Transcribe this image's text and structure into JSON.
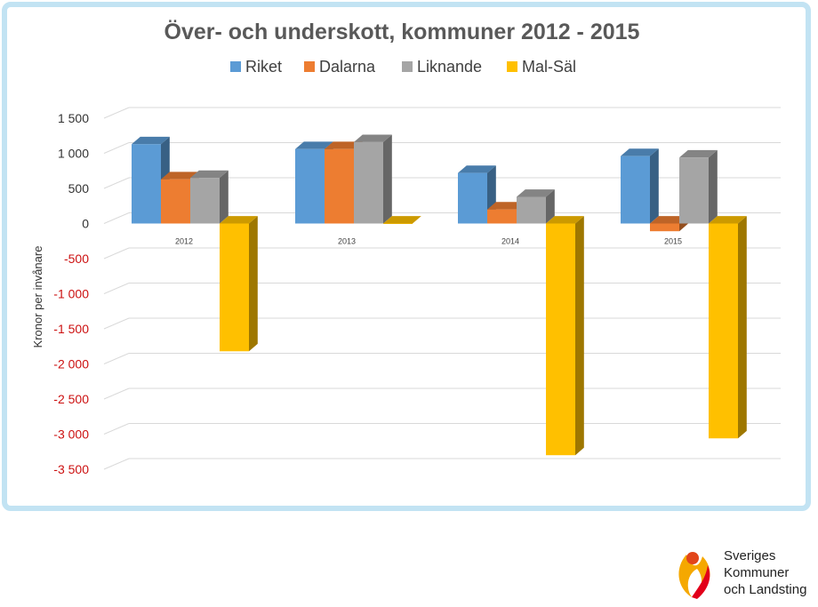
{
  "chart_data": {
    "type": "bar",
    "title": "Över- och underskott, kommuner 2012 - 2015",
    "ylabel": "Kronor per invånare",
    "xlabel": "",
    "categories": [
      "2012",
      "2013",
      "2014",
      "2015"
    ],
    "series": [
      {
        "name": "Riket",
        "values": [
          1130,
          1060,
          720,
          960
        ]
      },
      {
        "name": "Dalarna",
        "values": [
          630,
          1060,
          200,
          -110
        ]
      },
      {
        "name": "Liknande",
        "values": [
          650,
          1160,
          380,
          940
        ]
      },
      {
        "name": "Mal-Säl",
        "values": [
          -1820,
          0,
          -3300,
          -3060
        ]
      }
    ],
    "ylim": [
      -3500,
      1500
    ],
    "yticks": [
      1500,
      1000,
      500,
      0,
      -500,
      -1000,
      -1500,
      -2000,
      -2500,
      -3000,
      -3500
    ],
    "ytick_labels": [
      "1 500",
      "1 000",
      "500",
      "0",
      "-500",
      "-1 000",
      "-1 500",
      "-2 000",
      "-2 500",
      "-3 000",
      "-3 500"
    ],
    "grid": true,
    "legend_position": "top",
    "colors": {
      "Riket": "#5b9bd5",
      "Dalarna": "#ed7d31",
      "Liknande": "#a5a5a5",
      "Mal-Säl": "#ffc000",
      "positive_tick": "#333333",
      "negative_tick": "#cc1111"
    }
  },
  "logo": {
    "line1": "Sveriges",
    "line2": "Kommuner",
    "line3": "och Landsting",
    "icon": "skl-flame-logo-icon"
  }
}
